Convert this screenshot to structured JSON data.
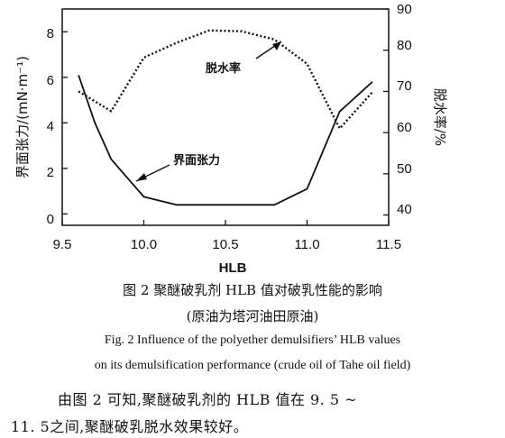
{
  "chart_data": {
    "type": "line",
    "xlabel": "HLB",
    "ylabel_left": "界面张力/(mN·m⁻¹)",
    "ylabel_right": "脱水率/%",
    "xlim": [
      9.5,
      11.5
    ],
    "ylim_left": [
      -0.5,
      9.0
    ],
    "ylim_right": [
      37.5,
      90
    ],
    "x_ticks": [
      "9.5",
      "10.0",
      "10.5",
      "11.0",
      "11.5"
    ],
    "y_ticks_left": [
      "0",
      "2",
      "4",
      "6",
      "8"
    ],
    "y_ticks_right": [
      "40",
      "50",
      "60",
      "70",
      "80",
      "90"
    ],
    "grid": false,
    "series": [
      {
        "name": "界面张力",
        "axis": "left",
        "style": "solid",
        "x": [
          9.6,
          9.7,
          9.8,
          10.0,
          10.2,
          10.5,
          10.8,
          11.0,
          11.2,
          11.4
        ],
        "y": [
          6.1,
          4.0,
          2.4,
          0.75,
          0.4,
          0.4,
          0.4,
          1.1,
          4.5,
          5.8
        ]
      },
      {
        "name": "脱水率",
        "axis": "right",
        "style": "dotted",
        "x": [
          9.6,
          9.8,
          10.0,
          10.2,
          10.4,
          10.6,
          10.8,
          11.0,
          11.2,
          11.4
        ],
        "y": [
          70.0,
          65.2,
          78.2,
          81.8,
          84.8,
          84.6,
          82.6,
          76.7,
          61.0,
          69.8
        ]
      }
    ],
    "annotations": [
      {
        "text": "界面张力",
        "series": 0
      },
      {
        "text": "脱水率",
        "series": 1
      }
    ]
  },
  "caption": {
    "zh_title": "图 2   聚醚破乳剂 HLB 值对破乳性能的影响",
    "zh_sub": "(原油为塔河油田原油)",
    "en_line1": "Fig. 2    Influence of the polyether demulsifiers’ HLB values",
    "en_line2": "on its demulsification performance (crude oil of Tahe oil field)"
  },
  "body": {
    "line1": "由图 2 可知,聚醚破乳剂的 HLB 值在 9. 5 ~",
    "line2": "11. 5之间,聚醚破乳脱水效果较好。"
  }
}
